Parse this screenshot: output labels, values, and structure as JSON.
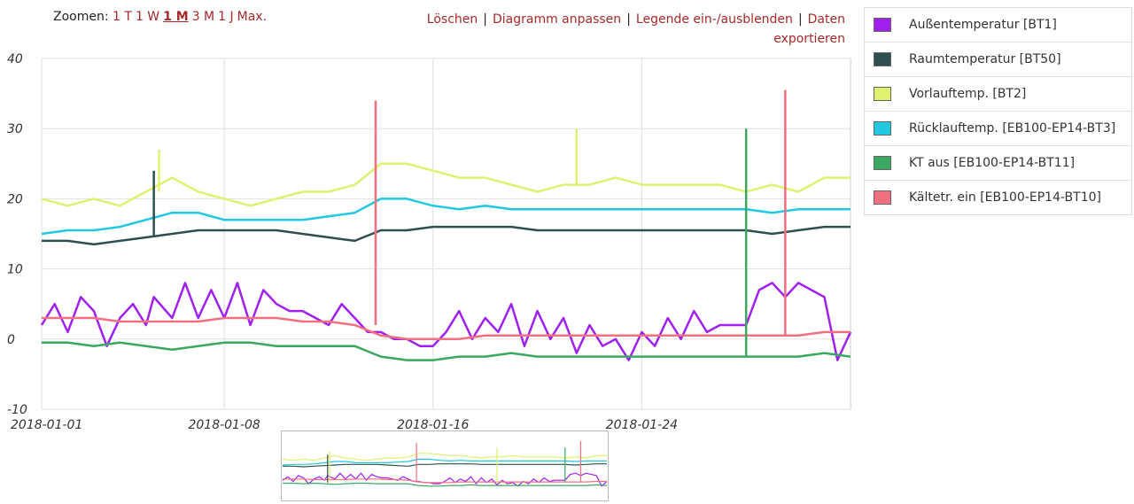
{
  "zoom": {
    "label": "Zoomen:",
    "options": [
      "1 T",
      "1 W",
      "1 M",
      "3 M",
      "1 J",
      "Max."
    ],
    "active": "1 M"
  },
  "actions": {
    "clear": "Löschen",
    "customize": "Diagramm anpassen",
    "toggle_legend": "Legende ein-/ausblenden",
    "export": "Daten exportieren"
  },
  "chart_data": {
    "type": "line",
    "ylim": [
      -10,
      40
    ],
    "yticks": [
      -10,
      0,
      10,
      20,
      30,
      40
    ],
    "xticks": [
      "2018-01-01",
      "2018-01-08",
      "2018-01-16",
      "2018-01-24"
    ],
    "xrange_days": [
      0,
      31
    ],
    "xtick_days": [
      0,
      7,
      15,
      23
    ],
    "grid": true,
    "legend_position": "right",
    "series": [
      {
        "name": "Außentemperatur [BT1]",
        "color": "#a020f0",
        "points": [
          [
            0,
            2
          ],
          [
            0.5,
            5
          ],
          [
            1,
            1
          ],
          [
            1.5,
            6
          ],
          [
            2,
            4
          ],
          [
            2.5,
            -1
          ],
          [
            3,
            3
          ],
          [
            3.5,
            5
          ],
          [
            4,
            2
          ],
          [
            4.3,
            6
          ],
          [
            5,
            3
          ],
          [
            5.5,
            8
          ],
          [
            6,
            3
          ],
          [
            6.5,
            7
          ],
          [
            7,
            3
          ],
          [
            7.5,
            8
          ],
          [
            8,
            2
          ],
          [
            8.5,
            7
          ],
          [
            9,
            5
          ],
          [
            9.5,
            4
          ],
          [
            10,
            4
          ],
          [
            10.5,
            3
          ],
          [
            11,
            2
          ],
          [
            11.5,
            5
          ],
          [
            12,
            3
          ],
          [
            12.5,
            1
          ],
          [
            13,
            1
          ],
          [
            13.5,
            0
          ],
          [
            14,
            0
          ],
          [
            14.5,
            -1
          ],
          [
            15,
            -1
          ],
          [
            15.5,
            1
          ],
          [
            16,
            4
          ],
          [
            16.5,
            0
          ],
          [
            17,
            3
          ],
          [
            17.5,
            1
          ],
          [
            18,
            5
          ],
          [
            18.5,
            -1
          ],
          [
            19,
            4
          ],
          [
            19.5,
            0
          ],
          [
            20,
            3
          ],
          [
            20.5,
            -2
          ],
          [
            21,
            2
          ],
          [
            21.5,
            -1
          ],
          [
            22,
            0
          ],
          [
            22.5,
            -3
          ],
          [
            23,
            1
          ],
          [
            23.5,
            -1
          ],
          [
            24,
            3
          ],
          [
            24.5,
            0
          ],
          [
            25,
            4
          ],
          [
            25.5,
            1
          ],
          [
            26,
            2
          ],
          [
            26.5,
            2
          ],
          [
            27,
            2
          ],
          [
            27.5,
            7
          ],
          [
            28,
            8
          ],
          [
            28.5,
            6
          ],
          [
            29,
            8
          ],
          [
            29.5,
            7
          ],
          [
            30,
            6
          ],
          [
            30.5,
            -3
          ],
          [
            31,
            1
          ]
        ]
      },
      {
        "name": "Raumtemperatur [BT50]",
        "color": "#2f4f4f",
        "points": [
          [
            0,
            14
          ],
          [
            1,
            14
          ],
          [
            2,
            13.5
          ],
          [
            3,
            14
          ],
          [
            4,
            14.5
          ],
          [
            5,
            15
          ],
          [
            6,
            15.5
          ],
          [
            7,
            15.5
          ],
          [
            8,
            15.5
          ],
          [
            9,
            15.5
          ],
          [
            10,
            15
          ],
          [
            11,
            14.5
          ],
          [
            12,
            14
          ],
          [
            13,
            15.5
          ],
          [
            14,
            15.5
          ],
          [
            15,
            16
          ],
          [
            16,
            16
          ],
          [
            17,
            16
          ],
          [
            18,
            16
          ],
          [
            19,
            15.5
          ],
          [
            20,
            15.5
          ],
          [
            21,
            15.5
          ],
          [
            22,
            15.5
          ],
          [
            23,
            15.5
          ],
          [
            24,
            15.5
          ],
          [
            25,
            15.5
          ],
          [
            26,
            15.5
          ],
          [
            27,
            15.5
          ],
          [
            28,
            15
          ],
          [
            29,
            15.5
          ],
          [
            30,
            16
          ],
          [
            31,
            16
          ]
        ]
      },
      {
        "name": "Vorlauftemp. [BT2]",
        "color": "#e0f070",
        "points": [
          [
            0,
            20
          ],
          [
            1,
            19
          ],
          [
            2,
            20
          ],
          [
            3,
            19
          ],
          [
            4,
            21
          ],
          [
            5,
            23
          ],
          [
            6,
            21
          ],
          [
            7,
            20
          ],
          [
            8,
            19
          ],
          [
            9,
            20
          ],
          [
            10,
            21
          ],
          [
            11,
            21
          ],
          [
            12,
            22
          ],
          [
            13,
            25
          ],
          [
            14,
            25
          ],
          [
            15,
            24
          ],
          [
            16,
            23
          ],
          [
            17,
            23
          ],
          [
            18,
            22
          ],
          [
            19,
            21
          ],
          [
            20,
            22
          ],
          [
            21,
            22
          ],
          [
            22,
            23
          ],
          [
            23,
            22
          ],
          [
            24,
            22
          ],
          [
            25,
            22
          ],
          [
            26,
            22
          ],
          [
            27,
            21
          ],
          [
            28,
            22
          ],
          [
            29,
            21
          ],
          [
            30,
            23
          ],
          [
            31,
            23
          ]
        ]
      },
      {
        "name": "Rücklauftemp. [EB100-EP14-BT3]",
        "color": "#20c8e0",
        "points": [
          [
            0,
            15
          ],
          [
            1,
            15.5
          ],
          [
            2,
            15.5
          ],
          [
            3,
            16
          ],
          [
            4,
            17
          ],
          [
            5,
            18
          ],
          [
            6,
            18
          ],
          [
            7,
            17
          ],
          [
            8,
            17
          ],
          [
            9,
            17
          ],
          [
            10,
            17
          ],
          [
            11,
            17.5
          ],
          [
            12,
            18
          ],
          [
            13,
            20
          ],
          [
            14,
            20
          ],
          [
            15,
            19
          ],
          [
            16,
            18.5
          ],
          [
            17,
            19
          ],
          [
            18,
            18.5
          ],
          [
            19,
            18.5
          ],
          [
            20,
            18.5
          ],
          [
            21,
            18.5
          ],
          [
            22,
            18.5
          ],
          [
            23,
            18.5
          ],
          [
            24,
            18.5
          ],
          [
            25,
            18.5
          ],
          [
            26,
            18.5
          ],
          [
            27,
            18.5
          ],
          [
            28,
            18
          ],
          [
            29,
            18.5
          ],
          [
            30,
            18.5
          ],
          [
            31,
            18.5
          ]
        ]
      },
      {
        "name": "KT aus [EB100-EP14-BT11]",
        "color": "#3aa860",
        "points": [
          [
            0,
            -0.5
          ],
          [
            1,
            -0.5
          ],
          [
            2,
            -1
          ],
          [
            3,
            -0.5
          ],
          [
            4,
            -1
          ],
          [
            5,
            -1.5
          ],
          [
            6,
            -1
          ],
          [
            7,
            -0.5
          ],
          [
            8,
            -0.5
          ],
          [
            9,
            -1
          ],
          [
            10,
            -1
          ],
          [
            11,
            -1
          ],
          [
            12,
            -1
          ],
          [
            13,
            -2.5
          ],
          [
            14,
            -3
          ],
          [
            15,
            -3
          ],
          [
            16,
            -2.5
          ],
          [
            17,
            -2.5
          ],
          [
            18,
            -2
          ],
          [
            19,
            -2.5
          ],
          [
            20,
            -2.5
          ],
          [
            21,
            -2.5
          ],
          [
            22,
            -2.5
          ],
          [
            23,
            -2.5
          ],
          [
            24,
            -2.5
          ],
          [
            25,
            -2.5
          ],
          [
            26,
            -2.5
          ],
          [
            27,
            -2.5
          ],
          [
            28,
            -2.5
          ],
          [
            29,
            -2.5
          ],
          [
            30,
            -2
          ],
          [
            31,
            -2.5
          ]
        ]
      },
      {
        "name": "Kältetr. ein [EB100-EP14-BT10]",
        "color": "#f07080",
        "points": [
          [
            0,
            3
          ],
          [
            1,
            3
          ],
          [
            2,
            3
          ],
          [
            3,
            2.5
          ],
          [
            4,
            2.5
          ],
          [
            5,
            2.5
          ],
          [
            6,
            2.5
          ],
          [
            7,
            3
          ],
          [
            8,
            3
          ],
          [
            9,
            3
          ],
          [
            10,
            2.5
          ],
          [
            11,
            2.5
          ],
          [
            12,
            2
          ],
          [
            13,
            0.5
          ],
          [
            14,
            0
          ],
          [
            15,
            0
          ],
          [
            16,
            0
          ],
          [
            17,
            0.5
          ],
          [
            18,
            0.5
          ],
          [
            19,
            0.5
          ],
          [
            20,
            0.5
          ],
          [
            21,
            0.5
          ],
          [
            22,
            0.5
          ],
          [
            23,
            0.5
          ],
          [
            24,
            0.5
          ],
          [
            25,
            0.5
          ],
          [
            26,
            0.5
          ],
          [
            27,
            0.5
          ],
          [
            28,
            0.5
          ],
          [
            29,
            0.5
          ],
          [
            30,
            1
          ],
          [
            31,
            1
          ]
        ]
      }
    ],
    "spikes": [
      {
        "series": "Raumtemperatur [BT50]",
        "x": 4.3,
        "y": 24
      },
      {
        "series": "Vorlauftemp. [BT2]",
        "x": 4.5,
        "y": 27
      },
      {
        "series": "Kältetr. ein [EB100-EP14-BT10]",
        "x": 12.8,
        "y": 34
      },
      {
        "series": "KT aus [EB100-EP14-BT11]",
        "x": 27,
        "y": 30
      },
      {
        "series": "Kältetr. ein [EB100-EP14-BT10]",
        "x": 28.5,
        "y": 35.5
      },
      {
        "series": "Vorlauftemp. [BT2]",
        "x": 20.5,
        "y": 30
      }
    ]
  }
}
